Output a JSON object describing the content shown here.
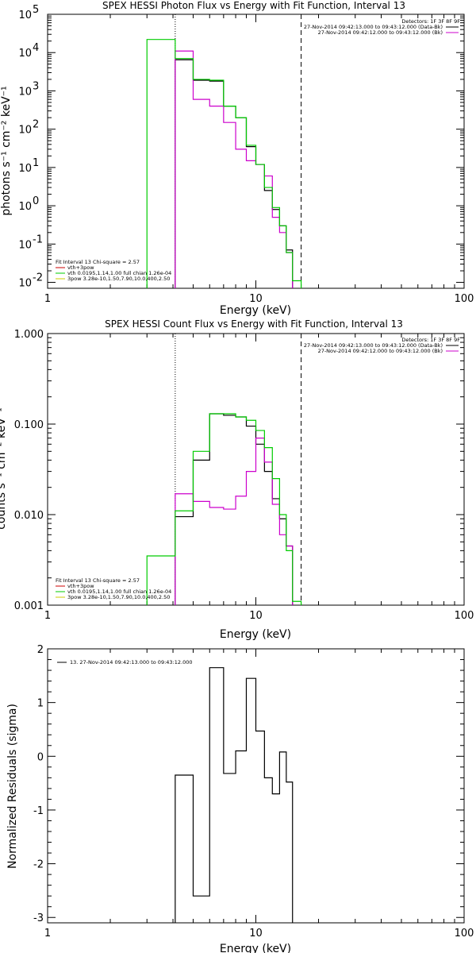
{
  "chart_data": [
    {
      "type": "line",
      "title": "SPEX HESSI Photon Flux vs Energy with Fit Function, Interval 13",
      "xlabel": "Energy (keV)",
      "ylabel": "photons s⁻¹ cm⁻² keV⁻¹",
      "xscale": "log",
      "yscale": "log",
      "xlim": [
        1,
        100
      ],
      "ylim": [
        0.007,
        100000
      ],
      "xticks": [
        "1",
        "10",
        "100"
      ],
      "yticks": [
        {
          "base": "10",
          "exp": "-2",
          "v": 0.01
        },
        {
          "base": "10",
          "exp": "-1",
          "v": 0.1
        },
        {
          "base": "10",
          "exp": "0",
          "v": 1
        },
        {
          "base": "10",
          "exp": "1",
          "v": 10
        },
        {
          "base": "10",
          "exp": "2",
          "v": 100
        },
        {
          "base": "10",
          "exp": "3",
          "v": 1000
        },
        {
          "base": "10",
          "exp": "4",
          "v": 10000
        },
        {
          "base": "10",
          "exp": "5",
          "v": 100000
        }
      ],
      "vlines": [
        {
          "x": 4.1,
          "style": "dotted"
        },
        {
          "x": 16.5,
          "style": "dashed"
        }
      ],
      "edges": [
        3.0,
        4.1,
        5.0,
        6.0,
        7.0,
        8.0,
        9.0,
        10.0,
        11.0,
        12.0,
        13.0,
        14.0,
        15.0,
        16.5,
        18.0
      ],
      "legend_top": {
        "detectors": "Detectors: 1F 3F 8F 9F",
        "entries": [
          {
            "text": "27-Nov-2014 09:42:13.000 to 09:43:12.000 (Data-Bk)",
            "color": "#000000"
          },
          {
            "text": "27-Nov-2014 09:42:12.000 to 09:43:12.000 (Bk)",
            "color": "#cc00cc"
          }
        ]
      },
      "legend_bottom": {
        "header": "Fit Interval 13   Chi-square = 2.57",
        "entries": [
          {
            "text": "vth+3pow",
            "color": "#cc0000"
          },
          {
            "text": "vth 0.0195,1.14,1.00  full chian 1.26e-04",
            "color": "#00cc00"
          },
          {
            "text": "3pow 3.28e-10,1.50,7.90,10.0,400,2.50",
            "color": "#cccc00"
          }
        ]
      },
      "series": [
        {
          "name": "Data-Bk",
          "color": "#000000",
          "x_start": 4.1,
          "values": [
            6500,
            1900,
            1800,
            400,
            200,
            35,
            12,
            2.5,
            0.8,
            0.3,
            0.07
          ]
        },
        {
          "name": "Bk",
          "color": "#cc00cc",
          "x_start": 4.1,
          "values": [
            11000,
            600,
            400,
            150,
            30,
            15,
            12,
            6,
            0.5,
            0.2,
            0.06
          ]
        },
        {
          "name": "vth+3pow",
          "color": "#00cc00",
          "x_start": 3.0,
          "values": [
            22000,
            7000,
            2000,
            1900,
            400,
            200,
            38,
            12,
            3,
            0.9,
            0.3,
            0.06,
            0.011
          ]
        }
      ]
    },
    {
      "type": "line",
      "title": "SPEX HESSI Count Flux vs Energy with Fit Function, Interval 13",
      "xlabel": "Energy (keV)",
      "ylabel": "counts s⁻¹ cm⁻² keV⁻¹",
      "xscale": "log",
      "yscale": "log",
      "xlim": [
        1,
        100
      ],
      "ylim": [
        0.001,
        1.0
      ],
      "xticks": [
        "1",
        "10",
        "100"
      ],
      "yticks": [
        {
          "label": "0.001",
          "v": 0.001
        },
        {
          "label": "0.010",
          "v": 0.01
        },
        {
          "label": "0.100",
          "v": 0.1
        },
        {
          "label": "1.000",
          "v": 1.0
        }
      ],
      "vlines": [
        {
          "x": 4.1,
          "style": "dotted"
        },
        {
          "x": 16.5,
          "style": "dashed"
        }
      ],
      "edges": [
        3.0,
        4.1,
        5.0,
        6.0,
        7.0,
        8.0,
        9.0,
        10.0,
        11.0,
        12.0,
        13.0,
        14.0,
        15.0,
        16.5,
        18.0
      ],
      "legend_top": {
        "detectors": "Detectors: 1F 3F 8F 9F",
        "entries": [
          {
            "text": "27-Nov-2014 09:42:13.000 to 09:43:12.000 (Data-Bk)",
            "color": "#000000"
          },
          {
            "text": "27-Nov-2014 09:42:12.000 to 09:43:12.000 (Bk)",
            "color": "#cc00cc"
          }
        ]
      },
      "legend_bottom": {
        "header": "Fit Interval 13   Chi-square = 2.57",
        "entries": [
          {
            "text": "vth+3pow",
            "color": "#cc0000"
          },
          {
            "text": "vth 0.0195,1.14,1.00  full chian 1.26e-04",
            "color": "#00cc00"
          },
          {
            "text": "3pow 3.28e-10,1.50,7.90,10.0,400,2.50",
            "color": "#cccc00"
          }
        ]
      },
      "series": [
        {
          "name": "Data-Bk",
          "color": "#000000",
          "x_start": 4.1,
          "values": [
            0.0095,
            0.04,
            0.13,
            0.125,
            0.12,
            0.095,
            0.06,
            0.03,
            0.015,
            0.009,
            0.0045
          ]
        },
        {
          "name": "Bk",
          "color": "#cc00cc",
          "x_start": 4.1,
          "values": [
            0.017,
            0.014,
            0.012,
            0.0115,
            0.016,
            0.03,
            0.07,
            0.038,
            0.013,
            0.006,
            0.0045
          ]
        },
        {
          "name": "vth+3pow",
          "color": "#00cc00",
          "x_start": 3.0,
          "values": [
            0.0035,
            0.011,
            0.05,
            0.13,
            0.13,
            0.12,
            0.11,
            0.085,
            0.055,
            0.025,
            0.01,
            0.004,
            0.0011
          ]
        }
      ]
    },
    {
      "type": "line",
      "title": "",
      "xlabel": "Energy (keV)",
      "ylabel": "Normalized Residuals (sigma)",
      "xscale": "log",
      "yscale": "linear",
      "xlim": [
        1,
        100
      ],
      "ylim": [
        -3.1,
        2.0
      ],
      "xticks": [
        "1",
        "10",
        "100"
      ],
      "yticks": [
        {
          "label": "-3",
          "v": -3
        },
        {
          "label": "-2",
          "v": -2
        },
        {
          "label": "-1",
          "v": -1
        },
        {
          "label": "0",
          "v": 0
        },
        {
          "label": "1",
          "v": 1
        },
        {
          "label": "2",
          "v": 2
        }
      ],
      "edges": [
        4.1,
        5.0,
        6.0,
        7.0,
        8.0,
        9.0,
        10.0,
        11.0,
        12.0,
        13.0,
        14.0,
        15.0,
        16.5
      ],
      "legend": {
        "text": "13. 27-Nov-2014 09:42:13.000 to 09:43:12.000",
        "color": "#000000"
      },
      "series": [
        {
          "color": "#000000",
          "x_start": 4.1,
          "values": [
            -0.35,
            -2.6,
            1.65,
            -0.32,
            0.1,
            1.45,
            0.47,
            -0.4,
            -0.7,
            0.08,
            -0.48
          ]
        }
      ]
    }
  ]
}
